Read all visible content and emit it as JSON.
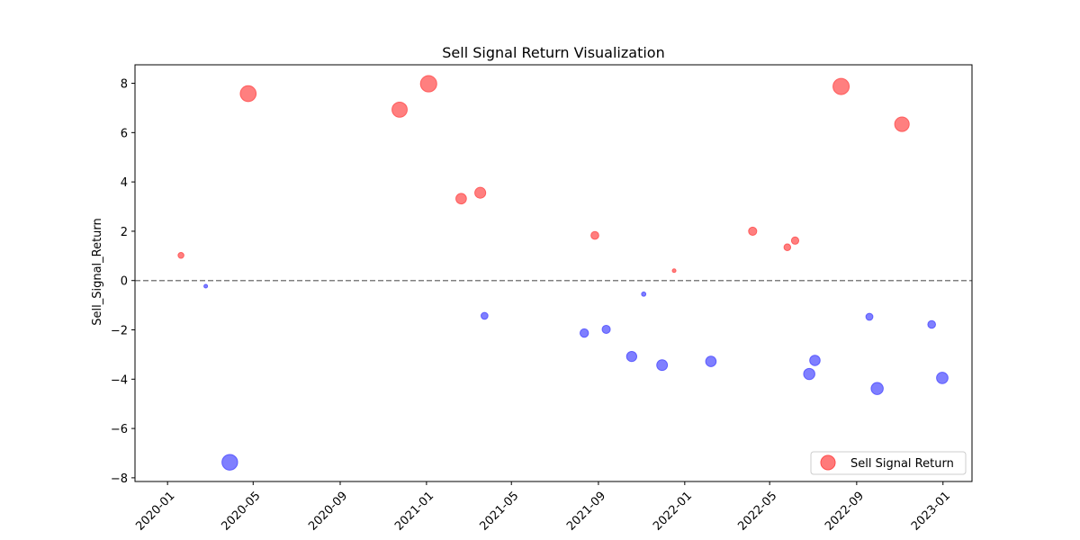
{
  "chart_data": {
    "type": "scatter",
    "title": "Sell Signal Return Visualization",
    "xlabel": "",
    "ylabel": "Sell_Signal_Return",
    "x_ticks": [
      "2020-01",
      "2020-05",
      "2020-09",
      "2021-01",
      "2021-05",
      "2021-09",
      "2022-01",
      "2022-05",
      "2022-09",
      "2023-01"
    ],
    "y_ticks": [
      -8,
      -6,
      -4,
      -2,
      0,
      2,
      4,
      6,
      8
    ],
    "xlim": [
      "2019-11-16",
      "2023-02-11"
    ],
    "ylim": [
      -8.15,
      8.75
    ],
    "reference_line": {
      "y": 0,
      "style": "dashed",
      "color": "#808080"
    },
    "marker_size": "proportional to |return|",
    "colors": {
      "positive": "#ff4d4d",
      "negative": "#4d4dff"
    },
    "legend": {
      "label": "Sell Signal Return",
      "position": "lower right"
    },
    "grid": false,
    "points": [
      {
        "date": "2020-01-20",
        "value": 1.02
      },
      {
        "date": "2020-02-24",
        "value": -0.23
      },
      {
        "date": "2020-03-29",
        "value": -7.37
      },
      {
        "date": "2020-04-24",
        "value": 7.58
      },
      {
        "date": "2020-11-24",
        "value": 6.93
      },
      {
        "date": "2021-01-04",
        "value": 7.98
      },
      {
        "date": "2021-02-19",
        "value": 3.32
      },
      {
        "date": "2021-03-18",
        "value": 3.56
      },
      {
        "date": "2021-03-24",
        "value": -1.43
      },
      {
        "date": "2021-08-12",
        "value": -2.13
      },
      {
        "date": "2021-08-27",
        "value": 1.83
      },
      {
        "date": "2021-09-12",
        "value": -1.98
      },
      {
        "date": "2021-10-18",
        "value": -3.08
      },
      {
        "date": "2021-11-04",
        "value": -0.55
      },
      {
        "date": "2021-11-30",
        "value": -3.43
      },
      {
        "date": "2021-12-17",
        "value": 0.4
      },
      {
        "date": "2022-02-07",
        "value": -3.28
      },
      {
        "date": "2022-04-07",
        "value": 2.0
      },
      {
        "date": "2022-05-26",
        "value": 1.35
      },
      {
        "date": "2022-06-06",
        "value": 1.62
      },
      {
        "date": "2022-06-26",
        "value": -3.79
      },
      {
        "date": "2022-07-04",
        "value": -3.24
      },
      {
        "date": "2022-08-10",
        "value": 7.87
      },
      {
        "date": "2022-09-19",
        "value": -1.47
      },
      {
        "date": "2022-09-30",
        "value": -4.38
      },
      {
        "date": "2022-11-04",
        "value": 6.34
      },
      {
        "date": "2022-12-16",
        "value": -1.78
      },
      {
        "date": "2022-12-31",
        "value": -3.95
      }
    ]
  }
}
